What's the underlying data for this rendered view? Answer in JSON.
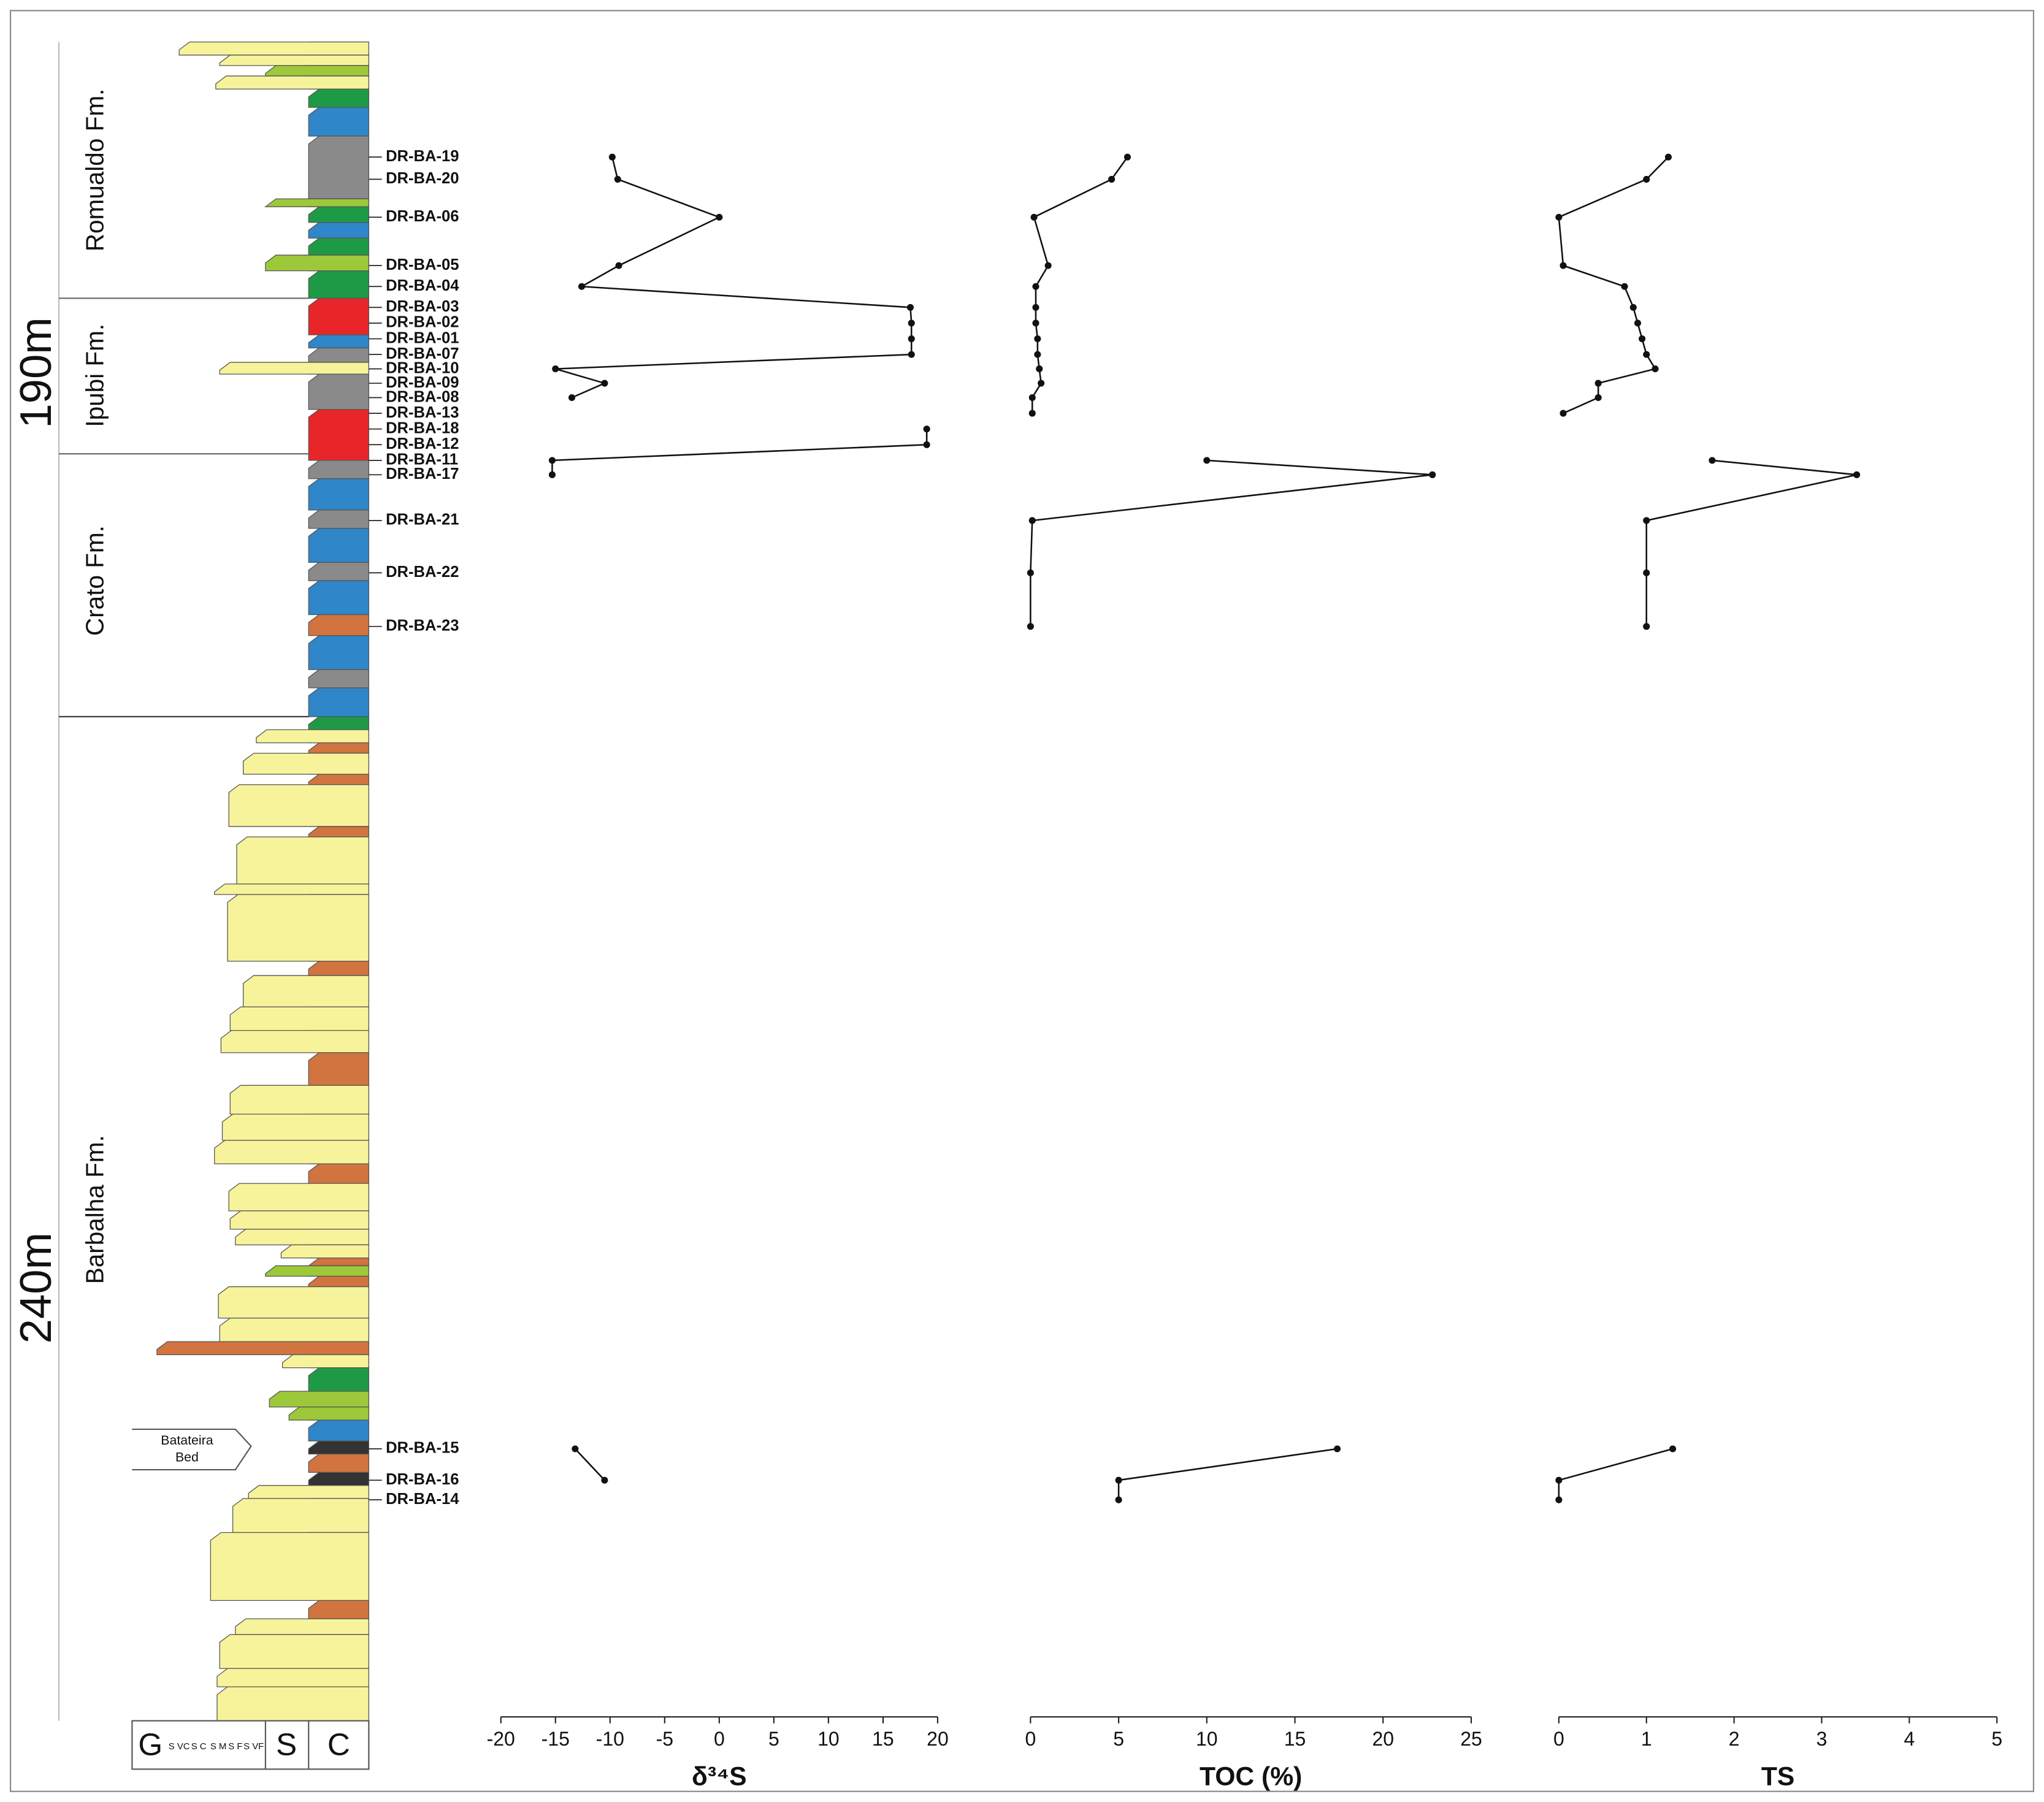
{
  "column": {
    "depth_labels": [
      "190m",
      "240m"
    ],
    "formations": [
      "Romualdo Fm.",
      "Ipubi Fm.",
      "Crato Fm.",
      "Barbalha Fm."
    ],
    "bed": [
      "Batateira",
      "Bed"
    ],
    "grain_size": [
      "G",
      "S VC",
      "S C",
      "S M",
      "S F",
      "S VF",
      "S",
      "C"
    ]
  },
  "chart_data": [
    {
      "type": "line",
      "xlabel": "δ³⁴S",
      "categories": [
        "DR-BA-19",
        "DR-BA-20",
        "DR-BA-06",
        "DR-BA-05",
        "DR-BA-04",
        "DR-BA-03",
        "DR-BA-02",
        "DR-BA-01",
        "DR-BA-07",
        "DR-BA-10",
        "DR-BA-09",
        "DR-BA-08",
        "DR-BA-13",
        "DR-BA-18",
        "DR-BA-12",
        "DR-BA-11",
        "DR-BA-17",
        "DR-BA-21",
        "DR-BA-22",
        "DR-BA-23",
        null,
        "DR-BA-15",
        "DR-BA-16",
        "DR-BA-14"
      ],
      "values": [
        -9.8,
        -9.3,
        0,
        -9.2,
        -12.6,
        17.5,
        17.6,
        17.6,
        17.6,
        -15,
        -10.5,
        -13.5,
        null,
        19,
        19,
        -15.3,
        -15.3,
        null,
        null,
        null,
        null,
        -13.2,
        -10.5,
        null
      ],
      "color": "#111111",
      "xlim": [
        -20,
        20
      ],
      "xticks": [
        -20,
        -15,
        -10,
        -5,
        0,
        5,
        10,
        15,
        20
      ]
    },
    {
      "type": "line",
      "xlabel": "TOC (%)",
      "values": [
        5.5,
        4.6,
        0.2,
        1,
        0.3,
        0.3,
        0.3,
        0.4,
        0.4,
        0.5,
        0.6,
        0.1,
        0.1,
        null,
        null,
        10,
        22.8,
        0.1,
        0,
        0,
        null,
        17.4,
        5,
        5
      ],
      "color": "#111111",
      "xlim": [
        0,
        25
      ],
      "xticks": [
        0,
        5,
        10,
        15,
        20,
        25
      ]
    },
    {
      "type": "line",
      "xlabel": "TS",
      "values": [
        1.25,
        1,
        0,
        0.05,
        0.75,
        0.85,
        0.9,
        0.95,
        1,
        1.1,
        0.45,
        0.45,
        0.05,
        null,
        null,
        1.75,
        3.4,
        1,
        1,
        1,
        null,
        1.3,
        0,
        0
      ],
      "color": "#111111",
      "xlim": [
        0,
        5
      ],
      "xticks": [
        0,
        1,
        2,
        3,
        4,
        5
      ]
    }
  ]
}
